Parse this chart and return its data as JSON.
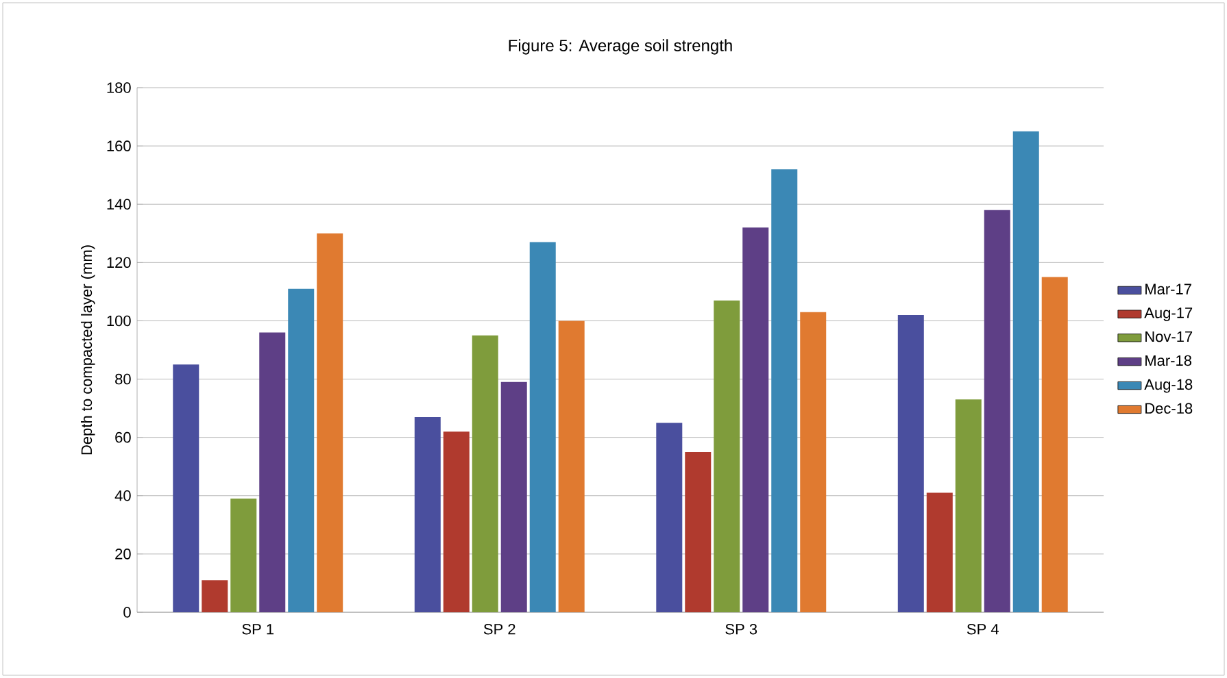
{
  "chart_data": {
    "type": "bar",
    "title": "Figure 5: Average soil strength",
    "ylabel": "Depth to compacted layer (mm)",
    "categories": [
      "SP 1",
      "SP 2",
      "SP 3",
      "SP 4"
    ],
    "series": [
      {
        "name": "Mar-17",
        "color": "#4a4f9e",
        "values": [
          85,
          67,
          65,
          102
        ]
      },
      {
        "name": "Aug-17",
        "color": "#b03a2e",
        "values": [
          11,
          62,
          55,
          41
        ]
      },
      {
        "name": "Nov-17",
        "color": "#7f9c3c",
        "values": [
          39,
          95,
          107,
          73
        ]
      },
      {
        "name": "Mar-18",
        "color": "#5e3f86",
        "values": [
          96,
          79,
          132,
          138
        ]
      },
      {
        "name": "Aug-18",
        "color": "#3b88b5",
        "values": [
          111,
          127,
          152,
          165
        ]
      },
      {
        "name": "Dec-18",
        "color": "#e07a30",
        "values": [
          130,
          100,
          103,
          115
        ]
      }
    ],
    "ylim": [
      0,
      180
    ],
    "yticks": [
      0,
      20,
      40,
      60,
      80,
      100,
      120,
      140,
      160,
      180
    ],
    "grid": "y",
    "legend": "right"
  }
}
